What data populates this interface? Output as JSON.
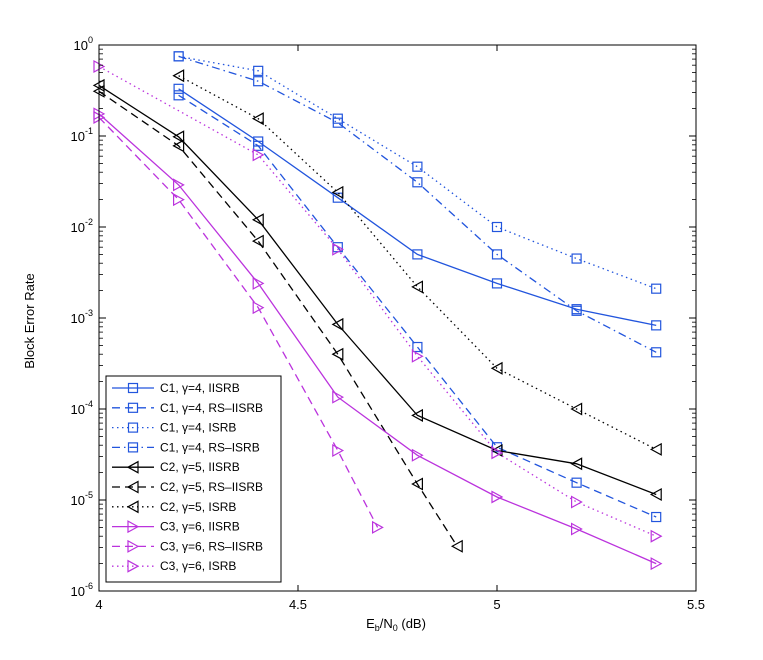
{
  "chart_data": {
    "type": "line",
    "title": "",
    "xlabel": "Eb/N0 (dB)",
    "xlabel_main": "E",
    "xlabel_sub1": "b",
    "xlabel_mid": "/N",
    "xlabel_sub2": "0",
    "xlabel_tail": " (dB)",
    "ylabel": "Block Error Rate",
    "xscale": "linear",
    "yscale": "log",
    "xlim": [
      4,
      5.5
    ],
    "ylim": [
      1e-06,
      1
    ],
    "x_ticks": [
      4,
      4.5,
      5,
      5.5
    ],
    "x_tick_labels": [
      "4",
      "4.5",
      "5",
      "5.5"
    ],
    "y_ticks": [
      1e-06,
      1e-05,
      0.0001,
      0.001,
      0.01,
      0.1,
      1
    ],
    "y_tick_labels": [
      {
        "base": "10",
        "exp": "-6"
      },
      {
        "base": "10",
        "exp": "-5"
      },
      {
        "base": "10",
        "exp": "-4"
      },
      {
        "base": "10",
        "exp": "-3"
      },
      {
        "base": "10",
        "exp": "-2"
      },
      {
        "base": "10",
        "exp": "-1"
      },
      {
        "base": "10",
        "exp": "0"
      }
    ],
    "legend_position": "bottom-left",
    "series": [
      {
        "name": "C1, γ=4, IISRB",
        "color": "#2255dd",
        "dash": "solid",
        "marker": "square",
        "x": [
          4.2,
          4.4,
          4.6,
          4.8,
          5.0,
          5.2,
          5.4
        ],
        "y": [
          0.33,
          0.087,
          0.021,
          0.005,
          0.0024,
          0.00125,
          0.00083
        ]
      },
      {
        "name": "C1, γ=4, RS–IISRB",
        "color": "#2255dd",
        "dash": "dashed",
        "marker": "square",
        "x": [
          4.2,
          4.4,
          4.6,
          4.8,
          5.0,
          5.2,
          5.4
        ],
        "y": [
          0.28,
          0.078,
          0.006,
          0.00048,
          3.8e-05,
          1.55e-05,
          6.5e-06
        ]
      },
      {
        "name": "C1, γ=4, ISRB",
        "color": "#2255dd",
        "dash": "dotted",
        "marker": "square",
        "x": [
          4.2,
          4.4,
          4.6,
          4.8,
          5.0,
          5.2,
          5.4
        ],
        "y": [
          0.75,
          0.52,
          0.155,
          0.046,
          0.01,
          0.0045,
          0.0021
        ]
      },
      {
        "name": "C1, γ=4, RS–ISRB",
        "color": "#2255dd",
        "dash": "dashdot",
        "marker": "square",
        "x": [
          4.2,
          4.4,
          4.6,
          4.8,
          5.0,
          5.2,
          5.4
        ],
        "y": [
          0.75,
          0.4,
          0.14,
          0.031,
          0.005,
          0.0012,
          0.00042
        ]
      },
      {
        "name": "C2, γ=5, IISRB",
        "color": "#000000",
        "dash": "solid",
        "marker": "triangle-left",
        "x": [
          4.0,
          4.2,
          4.4,
          4.6,
          4.8,
          5.0,
          5.2,
          5.4
        ],
        "y": [
          0.36,
          0.098,
          0.012,
          0.00085,
          8.5e-05,
          3.5e-05,
          2.5e-05,
          1.15e-05
        ]
      },
      {
        "name": "C2, γ=5, RS–IISRB",
        "color": "#000000",
        "dash": "dashed",
        "marker": "triangle-left",
        "x": [
          4.0,
          4.2,
          4.4,
          4.6,
          4.8,
          4.9
        ],
        "y": [
          0.31,
          0.078,
          0.007,
          0.0004,
          1.5e-05,
          3.1e-06
        ]
      },
      {
        "name": "C2, γ=5, ISRB",
        "color": "#000000",
        "dash": "dotted",
        "marker": "triangle-left",
        "x": [
          4.2,
          4.4,
          4.6,
          4.8,
          5.0,
          5.2,
          5.4
        ],
        "y": [
          0.46,
          0.155,
          0.024,
          0.0022,
          0.00028,
          0.0001,
          3.6e-05
        ]
      },
      {
        "name": "C3, γ=6, IISRB",
        "color": "#bb33dd",
        "dash": "solid",
        "marker": "triangle-right",
        "x": [
          4.0,
          4.2,
          4.4,
          4.6,
          4.8,
          5.0,
          5.2,
          5.4
        ],
        "y": [
          0.175,
          0.029,
          0.0024,
          0.000135,
          3.1e-05,
          1.08e-05,
          4.8e-06,
          2e-06
        ]
      },
      {
        "name": "C3, γ=6, RS–IISRB",
        "color": "#bb33dd",
        "dash": "dashed",
        "marker": "triangle-right",
        "x": [
          4.0,
          4.2,
          4.4,
          4.6,
          4.7
        ],
        "y": [
          0.16,
          0.02,
          0.0013,
          3.5e-05,
          5e-06
        ]
      },
      {
        "name": "C3, γ=6, ISRB",
        "color": "#bb33dd",
        "dash": "dotted",
        "marker": "triangle-right",
        "x": [
          4.0,
          4.4,
          4.6,
          4.8,
          5.0,
          5.2,
          5.4
        ],
        "y": [
          0.58,
          0.062,
          0.0057,
          0.00038,
          3.3e-05,
          9.5e-06,
          4e-06
        ]
      }
    ]
  }
}
